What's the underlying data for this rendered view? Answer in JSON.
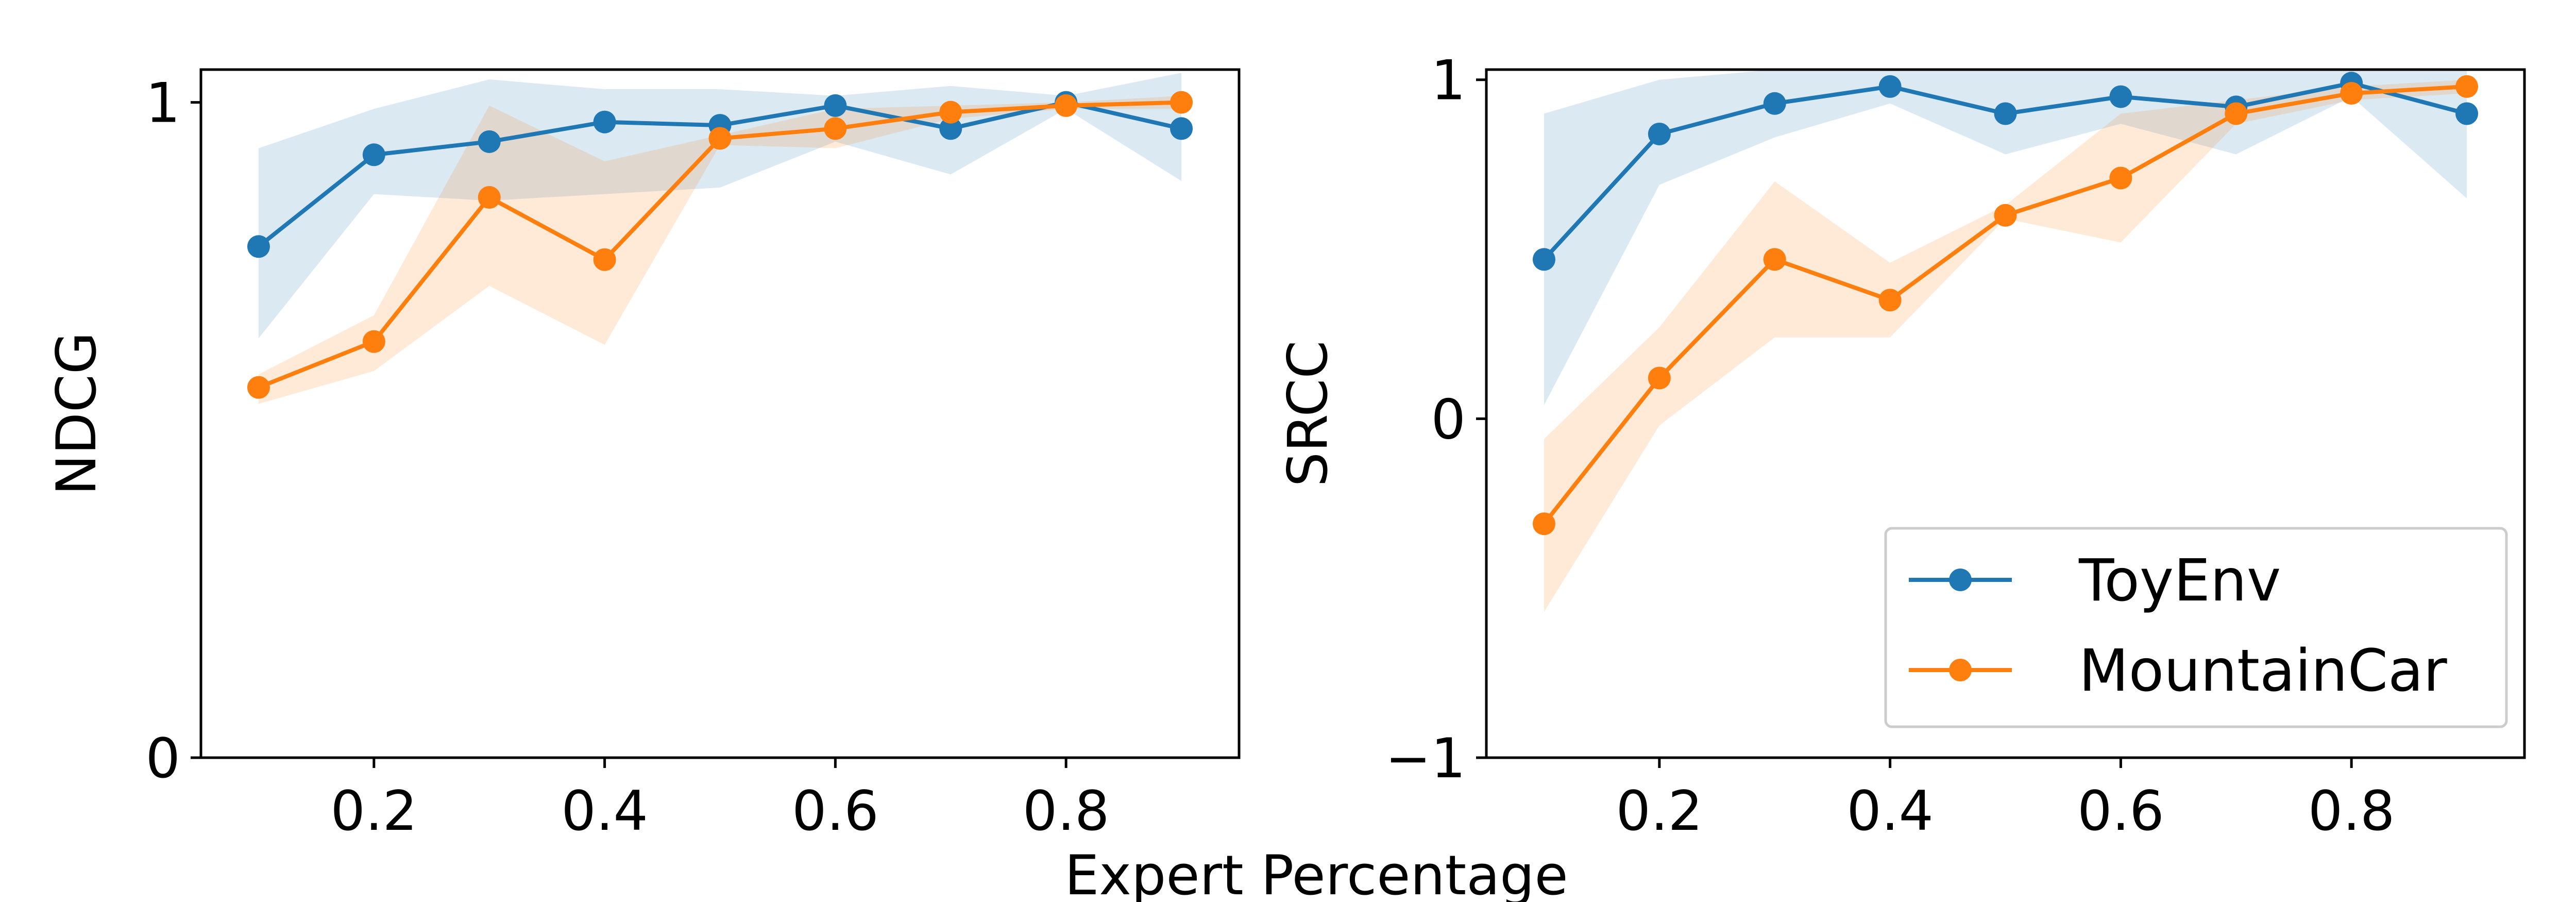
{
  "chart_data": [
    {
      "type": "line",
      "xlabel": "",
      "ylabel": "NDCG",
      "xlim": [
        0.05,
        0.95
      ],
      "ylim": [
        0,
        1.05
      ],
      "xticks": [
        0.2,
        0.4,
        0.6,
        0.8
      ],
      "xtick_labels": [
        "0.2",
        "0.4",
        "0.6",
        "0.8"
      ],
      "yticks": [
        0,
        1
      ],
      "ytick_labels": [
        "0",
        "1"
      ],
      "x": [
        0.1,
        0.2,
        0.3,
        0.4,
        0.5,
        0.6,
        0.7,
        0.8,
        0.9
      ],
      "series": [
        {
          "name": "ToyEnv",
          "color": "#1f77b4",
          "values": [
            0.78,
            0.92,
            0.94,
            0.97,
            0.965,
            0.995,
            0.96,
            1.0,
            0.96
          ],
          "lower": [
            0.64,
            0.86,
            0.85,
            0.86,
            0.87,
            0.94,
            0.89,
            0.99,
            0.88
          ],
          "upper": [
            0.93,
            0.99,
            1.035,
            1.02,
            1.02,
            1.01,
            1.025,
            1.01,
            1.045
          ]
        },
        {
          "name": "MountainCar",
          "color": "#ff7f0e",
          "values": [
            0.565,
            0.635,
            0.855,
            0.76,
            0.945,
            0.96,
            0.985,
            0.995,
            1.0
          ],
          "lower": [
            0.54,
            0.59,
            0.72,
            0.63,
            0.935,
            0.93,
            0.975,
            0.99,
            0.99
          ],
          "upper": [
            0.585,
            0.675,
            0.995,
            0.91,
            0.95,
            0.99,
            0.995,
            1.0,
            1.01
          ]
        }
      ]
    },
    {
      "type": "line",
      "xlabel": "",
      "ylabel": "SRCC",
      "xlim": [
        0.05,
        0.95
      ],
      "ylim": [
        -1,
        1.03
      ],
      "xticks": [
        0.2,
        0.4,
        0.6,
        0.8
      ],
      "xtick_labels": [
        "0.2",
        "0.4",
        "0.6",
        "0.8"
      ],
      "yticks": [
        -1,
        0,
        1
      ],
      "ytick_labels": [
        "−1",
        "0",
        "1"
      ],
      "x": [
        0.1,
        0.2,
        0.3,
        0.4,
        0.5,
        0.6,
        0.7,
        0.8,
        0.9
      ],
      "legend": "lower-right",
      "series": [
        {
          "name": "ToyEnv",
          "color": "#1f77b4",
          "values": [
            0.47,
            0.84,
            0.93,
            0.98,
            0.9,
            0.95,
            0.92,
            0.99,
            0.9
          ],
          "lower": [
            0.04,
            0.69,
            0.83,
            0.93,
            0.78,
            0.87,
            0.78,
            0.95,
            0.65
          ],
          "upper": [
            0.9,
            1.0,
            1.03,
            1.03,
            1.03,
            1.03,
            1.03,
            1.03,
            1.03
          ]
        },
        {
          "name": "MountainCar",
          "color": "#ff7f0e",
          "values": [
            -0.31,
            0.12,
            0.47,
            0.35,
            0.6,
            0.71,
            0.9,
            0.96,
            0.98
          ],
          "lower": [
            -0.57,
            -0.02,
            0.24,
            0.24,
            0.59,
            0.52,
            0.87,
            0.94,
            0.96
          ],
          "upper": [
            -0.06,
            0.27,
            0.7,
            0.46,
            0.63,
            0.9,
            0.94,
            0.98,
            1.0
          ]
        }
      ]
    }
  ],
  "shared_xlabel": "Expert Percentage"
}
